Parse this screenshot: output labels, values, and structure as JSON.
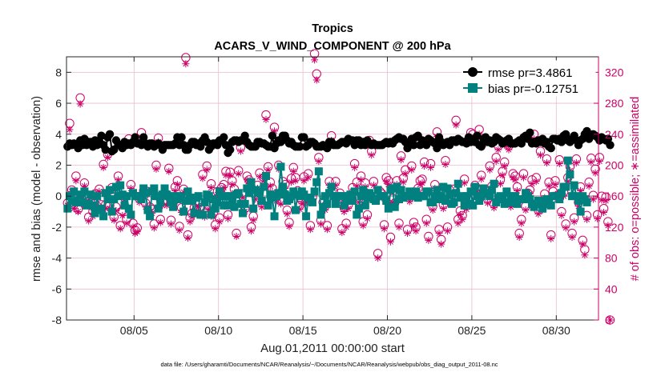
{
  "chart_data": {
    "type": "line",
    "title": "Tropics",
    "subtitle": "ACARS_V_WIND_COMPONENT @ 200 hPa",
    "xlabel": "Aug.01,2011 00:00:00 start",
    "ylabel_left": "rmse and bias (model - observation)",
    "ylabel_right": "# of obs: o=possible; ∗=assimilated",
    "footer": "data file: /Users/gharamti/Documents/NCAR/Reanalysis/~/Documents/NCAR/Reanalysis/webpub/obs_diag_output_2011-08.nc",
    "x_range_days": [
      1.0,
      32.5
    ],
    "x_tick_days": [
      5,
      10,
      15,
      20,
      25,
      30
    ],
    "x_tick_labels": [
      "08/05",
      "08/10",
      "08/15",
      "08/20",
      "08/25",
      "08/30"
    ],
    "ylim_left": [
      -8,
      9
    ],
    "y_ticks_left": [
      "-8",
      "-6",
      "-4",
      "-2",
      "0",
      "2",
      "4",
      "6",
      "8"
    ],
    "ylim_right": [
      0,
      340
    ],
    "y_ticks_right": [
      "0",
      "40",
      "80",
      "120",
      "160",
      "200",
      "240",
      "280",
      "320"
    ],
    "colors": {
      "rmse": "#000000",
      "bias": "#00807f",
      "obs": "#cc0066",
      "grid": "#e8bcd0",
      "zero_line": "#b4b4b4"
    },
    "series": [
      {
        "name": "rmse pr=3.4861",
        "axis": "left",
        "marker": "circle",
        "values": [
          3.2,
          3.4,
          3.3,
          3.4,
          3.3,
          3.1,
          3.6,
          3.3,
          3.7,
          3.3,
          3.5,
          3.5,
          3.2,
          3.6,
          3.3,
          3.5,
          3.9,
          3.3,
          3.0,
          3.8,
          4.0,
          2.9,
          3.0,
          3.6,
          3.3,
          3.3,
          3.1,
          3.5,
          3.3,
          3.4,
          3.3,
          3.5,
          3.8,
          3.4,
          3.4,
          3.3,
          3.8,
          3.4,
          3.2,
          3.4,
          3.4,
          3.2,
          3.3,
          3.4,
          3.3,
          3.0,
          3.3,
          3.3,
          3.3,
          3.3,
          3.3,
          3.4,
          3.8,
          3.3,
          3.8,
          3.3,
          3.0,
          3.0,
          3.3,
          3.5,
          3.5,
          3.3,
          3.4,
          3.2,
          3.6,
          3.8,
          3.5,
          3.0,
          3.2,
          3.4,
          3.4,
          3.3,
          3.6,
          3.6,
          3.8,
          3.3,
          2.8,
          3.0,
          3.5,
          3.6,
          3.6,
          3.5,
          3.6,
          3.6,
          3.9,
          3.5,
          3.3,
          3.2,
          3.2,
          3.2,
          3.5,
          3.5,
          3.4,
          3.4,
          3.3,
          3.2,
          3.2,
          3.9,
          3.1,
          3.4,
          3.6,
          3.5,
          3.9,
          3.9,
          3.6,
          3.4,
          3.5,
          3.3,
          3.2,
          3.2,
          3.2,
          3.8,
          3.8,
          3.2,
          3.3,
          3.5,
          3.5,
          3.4,
          3.2,
          3.2,
          3.2,
          3.3,
          3.2,
          3.1,
          3.5,
          3.5,
          3.3,
          3.3,
          3.3,
          3.4,
          3.5,
          3.5,
          3.4,
          3.7,
          3.6,
          3.6,
          3.3,
          3.6,
          3.6,
          3.3,
          3.5,
          3.3,
          3.6,
          3.4,
          3.3,
          3.4,
          3.3,
          3.3,
          3.3,
          3.3,
          3.4,
          3.5,
          3.4,
          3.5,
          3.4,
          3.6,
          3.7,
          3.8,
          3.7,
          3.7,
          3.5,
          3.1,
          3.4,
          3.7,
          3.3,
          3.8,
          3.9,
          3.3,
          3.6,
          3.4,
          3.3,
          3.7,
          3.6,
          3.5,
          3.4,
          3.1,
          3.8,
          3.5,
          3.3,
          3.4,
          3.5,
          3.3,
          3.6,
          3.6,
          3.5,
          3.7,
          3.6,
          3.5,
          3.5,
          3.4,
          3.8,
          3.5,
          3.7,
          3.5,
          3.9,
          3.3,
          3.2,
          3.7,
          3.8,
          3.5,
          3.6,
          3.4,
          3.5,
          3.8,
          3.7,
          3.6,
          3.4,
          3.5,
          3.6,
          3.7,
          3.4,
          3.4,
          3.4,
          3.5,
          3.6,
          3.4,
          3.8,
          3.9,
          3.7,
          4.1,
          3.4,
          3.5,
          3.4,
          3.6,
          3.5,
          3.7,
          3.4,
          3.5,
          3.2,
          3.1,
          3.7,
          3.7,
          3.6,
          3.7,
          3.5,
          3.9,
          4.0,
          3.6,
          3.5,
          3.7,
          3.9,
          3.6,
          3.3,
          3.6,
          3.7,
          4.0,
          4.2,
          3.7,
          3.9,
          4.0,
          3.9,
          3.8,
          3.6,
          3.8,
          3.7,
          3.6,
          3.7,
          3.3
        ]
      },
      {
        "name": "bias pr=-0.12751",
        "axis": "left",
        "marker": "square",
        "values": [
          -0.8,
          0.0,
          -0.3,
          0.3,
          -0.4,
          -0.3,
          0.1,
          -0.4,
          0.3,
          -0.6,
          -0.5,
          0.1,
          -0.6,
          -1.1,
          0.0,
          -0.9,
          -0.8,
          -1.3,
          0.2,
          -0.2,
          0.4,
          -1.0,
          -0.2,
          0.6,
          0.0,
          0.7,
          0.1,
          -0.6,
          0.0,
          -0.8,
          -1.2,
          0.2,
          0.0,
          0.0,
          0.0,
          -0.2,
          0.5,
          0.2,
          -0.9,
          -1.3,
          0.3,
          0.5,
          0.0,
          -0.8,
          -0.4,
          0.1,
          0.5,
          0.1,
          0.0,
          -0.4,
          -0.7,
          0.0,
          -0.2,
          0.0,
          -0.1,
          -1.0,
          -0.3,
          0.3,
          -0.1,
          -0.3,
          -1.1,
          -0.1,
          0.0,
          -1.2,
          -1.2,
          -0.4,
          0.1,
          0.0,
          -1.2,
          -0.2,
          -0.8,
          -0.4,
          0.3,
          0.0,
          -0.6,
          0.0,
          -0.6,
          0.0,
          -0.4,
          -0.7,
          0.1,
          0.2,
          -0.5,
          -1.1,
          -0.5,
          0.5,
          0.2,
          0.9,
          -0.8,
          0.4,
          0.2,
          0.3,
          -0.3,
          0.6,
          1.3,
          -0.6,
          0.1,
          -0.1,
          -1.3,
          0.0,
          0.2,
          1.9,
          0.6,
          0.1,
          -0.3,
          -0.2,
          0.0,
          0.3,
          -0.9,
          0.1,
          0.0,
          0.3,
          0.1,
          -1.3,
          -0.1,
          -0.1,
          -0.4,
          0.3,
          0.9,
          1.6,
          -1.2,
          -0.7,
          0.0,
          -0.5,
          0.2,
          0.6,
          0.0,
          -0.5,
          0.0,
          0.0,
          0.0,
          -0.6,
          -0.3,
          0.0,
          0.1,
          -0.3,
          0.3,
          -1.2,
          -0.8,
          0.0,
          0.4,
          -0.6,
          -0.1,
          0.2,
          0.0,
          -0.2,
          -0.3,
          0.4,
          0.0,
          0.0,
          0.0,
          -0.3,
          -0.8,
          0.4,
          0.5,
          -0.7,
          0.6,
          -0.2,
          0.4,
          -0.1,
          0.0,
          0.0,
          0.3,
          0.0,
          0.0,
          0.3,
          -0.1,
          0.0,
          0.0,
          0.0,
          0.3,
          0.3,
          -0.4,
          -0.4,
          0.0,
          0.4,
          -0.2,
          0.0,
          0.6,
          -0.3,
          0.5,
          0.1,
          -0.5,
          -0.4,
          0.2,
          0.8,
          -0.1,
          0.0,
          -0.6,
          0.0,
          -0.5,
          0.3,
          -0.6,
          0.6,
          0.0,
          -0.3,
          0.0,
          0.5,
          0.2,
          0.2,
          0.0,
          0.4,
          0.8,
          -0.4,
          -0.1,
          0.0,
          -0.2,
          -0.5,
          0.3,
          -0.4,
          0.0,
          -0.4,
          0.0,
          -0.5,
          -0.2,
          -0.2,
          -0.2,
          0.2,
          0.0,
          -0.2,
          -0.5,
          -0.7,
          -0.5,
          -0.3,
          -0.5,
          -0.8,
          -0.3,
          -0.2,
          -0.5,
          -0.6,
          0.0,
          0.0,
          0.0,
          -0.2,
          0.2,
          0.6,
          0.6,
          2.3,
          1.4,
          0.0,
          0.7,
          0.0,
          -0.3,
          -1.0,
          0.0,
          -0.2,
          -0.4
        ]
      },
      {
        "name": "obs possible",
        "axis": "right",
        "marker": "open-circle",
        "values": [
          151,
          254,
          168,
          149,
          186,
          143,
          287,
          155,
          177,
          160,
          133,
          151,
          140,
          163,
          147,
          169,
          149,
          201,
          149,
          214,
          148,
          171,
          133,
          146,
          186,
          122,
          141,
          158,
          130,
          234,
          175,
          125,
          116,
          119,
          157,
          242,
          167,
          151,
          166,
          146,
          143,
          124,
          200,
          235,
          130,
          153,
          165,
          154,
          196,
          129,
          151,
          172,
          180,
          121,
          145,
          169,
          339,
          110,
          132,
          138,
          145,
          143,
          152,
          145,
          188,
          138,
          199,
          148,
          176,
          138,
          123,
          166,
          132,
          171,
          175,
          192,
          136,
          191,
          180,
          169,
          112,
          193,
          223,
          163,
          144,
          186,
          181,
          120,
          134,
          161,
          174,
          190,
          151,
          184,
          265,
          198,
          178,
          170,
          249,
          159,
          200,
          154,
          179,
          175,
          142,
          126,
          183,
          197,
          184,
          167,
          148,
          155,
          185,
          157,
          189,
          122,
          158,
          344,
          318,
          210,
          129,
          152,
          147,
          122,
          179,
          238,
          166,
          179,
          156,
          164,
          118,
          145,
          125,
          149,
          160,
          171,
          202,
          178,
          157,
          186,
          127,
          177,
          136,
          232,
          218,
          179,
          160,
          86,
          166,
          163,
          123,
          184,
          180,
          107,
          157,
          151,
          180,
          125,
          212,
          183,
          194,
          117,
          158,
          199,
          126,
          120,
          170,
          180,
          182,
          204,
          130,
          108,
          202,
          147,
          175,
          243,
          117,
          104,
          149,
          206,
          120,
          168,
          162,
          169,
          258,
          130,
          141,
          135,
          182,
          148,
          156,
          242,
          240,
          174,
          170,
          246,
          187,
          166,
          233,
          156,
          199,
          173,
          150,
          210,
          225,
          181,
          192,
          204,
          230,
          225,
          151,
          189,
          186,
          172,
          112,
          130,
          189,
          147,
          164,
          168,
          181,
          240,
          184,
          142,
          218,
          147,
          163,
          208,
          178,
          110,
          166,
          180,
          161,
          207,
          140,
          165,
          124,
          184,
          198,
          112,
          132,
          208,
          152,
          172,
          103,
          91,
          135,
          178,
          209,
          161,
          195,
          136,
          210,
          160,
          144,
          159,
          127,
          0
        ]
      },
      {
        "name": "obs assimilated",
        "axis": "right",
        "marker": "asterisk",
        "values": [
          148,
          246,
          166,
          144,
          180,
          140,
          279,
          150,
          173,
          154,
          128,
          146,
          134,
          159,
          142,
          166,
          144,
          197,
          144,
          210,
          144,
          167,
          129,
          141,
          181,
          118,
          135,
          153,
          125,
          228,
          170,
          120,
          112,
          114,
          152,
          236,
          163,
          146,
          162,
          140,
          138,
          119,
          195,
          230,
          126,
          148,
          160,
          148,
          192,
          124,
          147,
          167,
          175,
          116,
          139,
          165,
          331,
          106,
          127,
          133,
          140,
          138,
          146,
          140,
          183,
          133,
          194,
          143,
          171,
          133,
          118,
          162,
          127,
          166,
          171,
          187,
          131,
          187,
          175,
          164,
          108,
          189,
          218,
          158,
          140,
          181,
          176,
          115,
          129,
          156,
          170,
          185,
          146,
          180,
          259,
          194,
          173,
          165,
          244,
          154,
          195,
          150,
          174,
          170,
          137,
          121,
          178,
          192,
          180,
          162,
          143,
          150,
          180,
          152,
          184,
          117,
          153,
          336,
          310,
          205,
          124,
          147,
          142,
          117,
          174,
          232,
          161,
          174,
          151,
          159,
          113,
          140,
          120,
          144,
          155,
          166,
          197,
          173,
          152,
          181,
          122,
          172,
          131,
          227,
          213,
          174,
          155,
          80,
          161,
          158,
          118,
          179,
          175,
          101,
          152,
          146,
          175,
          120,
          207,
          178,
          189,
          112,
          153,
          194,
          121,
          115,
          165,
          175,
          177,
          199,
          125,
          103,
          197,
          142,
          170,
          237,
          112,
          98,
          144,
          201,
          115,
          163,
          157,
          164,
          252,
          125,
          136,
          130,
          177,
          143,
          151,
          236,
          234,
          169,
          165,
          240,
          182,
          161,
          228,
          151,
          194,
          168,
          145,
          205,
          220,
          176,
          187,
          199,
          225,
          220,
          146,
          184,
          181,
          167,
          107,
          125,
          184,
          142,
          159,
          163,
          176,
          234,
          179,
          137,
          213,
          142,
          158,
          203,
          173,
          105,
          161,
          175,
          156,
          202,
          135,
          160,
          119,
          179,
          193,
          107,
          127,
          203,
          147,
          167,
          98,
          84,
          130,
          173,
          204,
          156,
          190,
          131,
          205,
          155,
          139,
          154,
          122,
          0
        ]
      }
    ]
  }
}
